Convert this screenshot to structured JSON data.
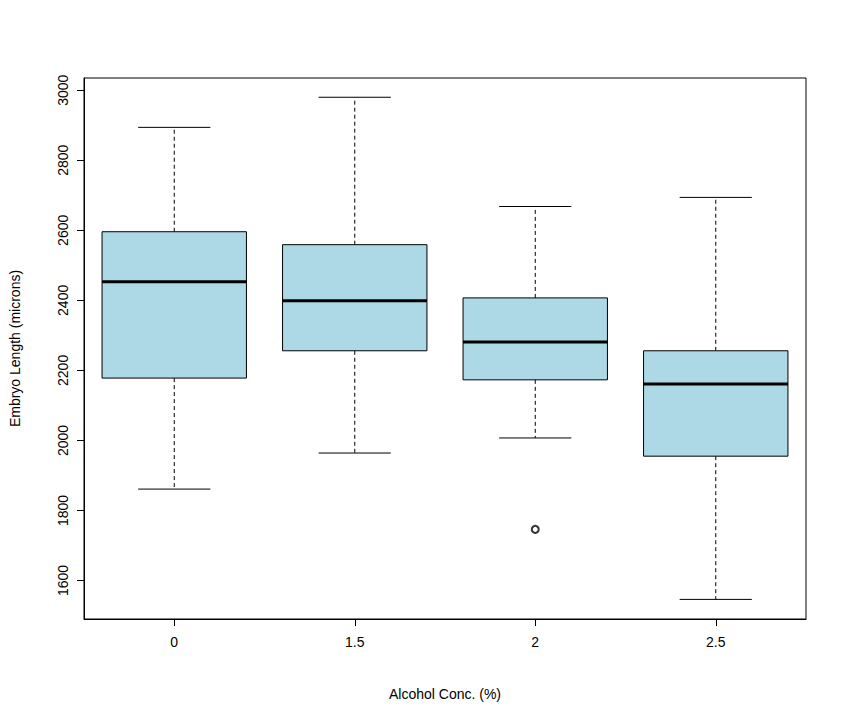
{
  "chart_data": {
    "type": "boxplot",
    "x_label": "Alcohol Conc. (%)",
    "y_label": "Embryo Length (microns)",
    "categories": [
      "0",
      "1.5",
      "2",
      "2.5"
    ],
    "values": [
      [
        1861,
        2178,
        2453,
        2596,
        2894
      ],
      [
        1964,
        2256,
        2399,
        2559,
        2980
      ],
      [
        2007,
        2173,
        2281,
        2407,
        2668
      ],
      [
        1546,
        1955,
        2161,
        2256,
        2694
      ]
    ],
    "outliers": [
      [],
      [],
      [
        1746
      ],
      []
    ],
    "color": "#add8e6",
    "ylim": [
      1490,
      3035
    ],
    "yticks": [
      1600,
      1800,
      2000,
      2200,
      2400,
      2600,
      2800,
      3000
    ],
    "grid": false
  }
}
